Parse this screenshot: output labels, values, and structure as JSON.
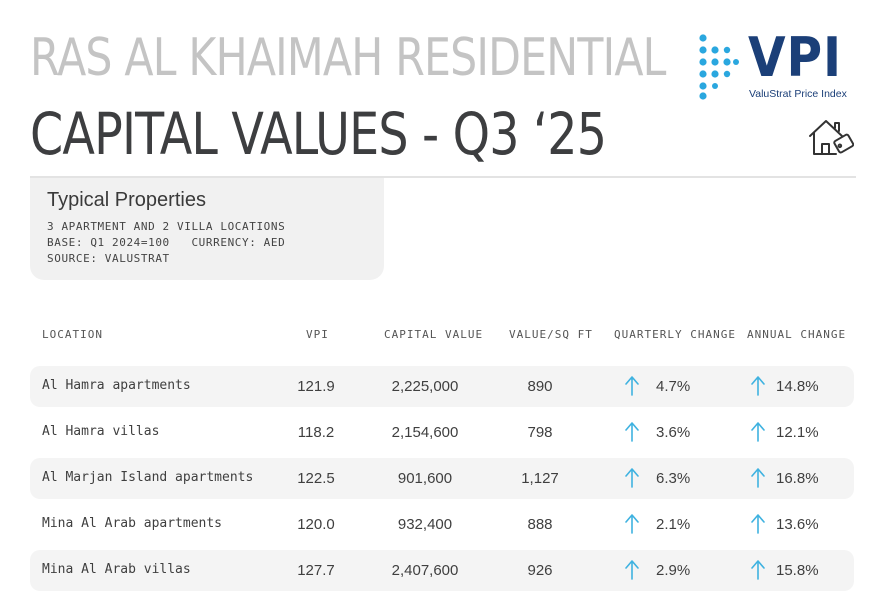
{
  "header": {
    "title_line1": "RAS AL KHAIMAH  RESIDENTIAL",
    "title_line2": "CAPITAL VALUES - Q3 ‘25"
  },
  "logo": {
    "text": "VPI",
    "subtitle": "ValuStrat Price Index",
    "color": "#1b3f78",
    "dot_color": "#2aa7df",
    "icon": "house-price-tag-icon"
  },
  "info_card": {
    "title": "Typical Properties",
    "line1": "3 APARTMENT AND 2 VILLA LOCATIONS",
    "line2": "BASE: Q1 2024=100   CURRENCY: AED",
    "line3": "SOURCE: VALUSTRAT"
  },
  "table": {
    "columns": [
      "LOCATION",
      "VPI",
      "CAPITAL VALUE",
      "VALUE/SQ FT",
      "QUARTERLY CHANGE",
      "ANNUAL CHANGE"
    ],
    "arrow_color": "#3fb2e0",
    "rows": [
      {
        "location": "Al Hamra apartments",
        "vpi": "121.9",
        "capital_value": "2,225,000",
        "value_sqft": "890",
        "quarterly": "4.7%",
        "annual": "14.8%"
      },
      {
        "location": "Al Hamra villas",
        "vpi": "118.2",
        "capital_value": "2,154,600",
        "value_sqft": "798",
        "quarterly": "3.6%",
        "annual": "12.1%"
      },
      {
        "location": "Al Marjan Island apartments",
        "vpi": "122.5",
        "capital_value": "901,600",
        "value_sqft": "1,127",
        "quarterly": "6.3%",
        "annual": "16.8%"
      },
      {
        "location": "Mina Al Arab apartments",
        "vpi": "120.0",
        "capital_value": "932,400",
        "value_sqft": "888",
        "quarterly": "2.1%",
        "annual": "13.6%"
      },
      {
        "location": "Mina Al Arab villas",
        "vpi": "127.7",
        "capital_value": "2,407,600",
        "value_sqft": "926",
        "quarterly": "2.9%",
        "annual": "15.8%"
      }
    ]
  }
}
